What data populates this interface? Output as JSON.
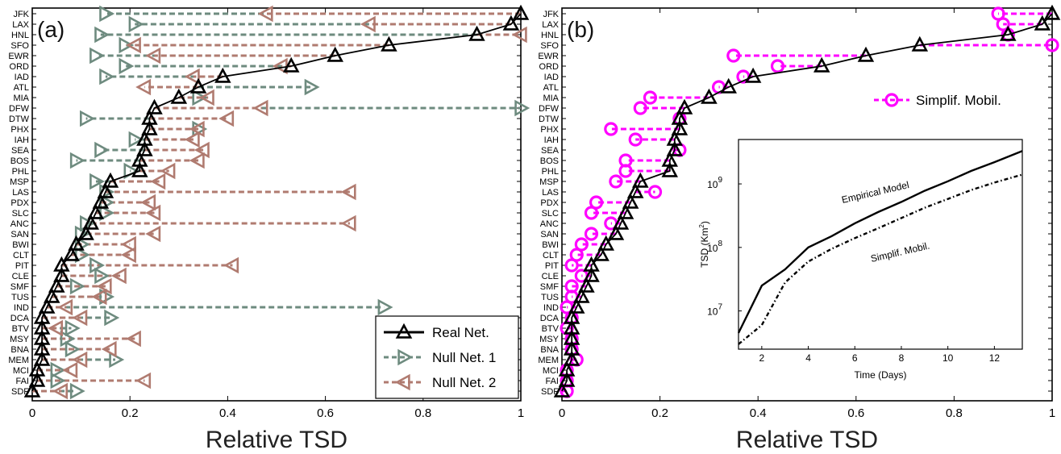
{
  "airports": [
    "JFK",
    "LAX",
    "HNL",
    "SFO",
    "EWR",
    "ORD",
    "IAD",
    "ATL",
    "MIA",
    "DFW",
    "DTW",
    "PHX",
    "IAH",
    "SEA",
    "BOS",
    "PHL",
    "MSP",
    "LAS",
    "PDX",
    "SLC",
    "ANC",
    "SAN",
    "BWI",
    "CLT",
    "PIT",
    "CLE",
    "SMF",
    "TUS",
    "IND",
    "DCA",
    "BTV",
    "MSY",
    "BNA",
    "MEM",
    "MCI",
    "FAI",
    "SDF"
  ],
  "colors": {
    "real": "#000000",
    "null1": "#6e8b7f",
    "null2": "#b07b70",
    "simplif": "#ff00ff"
  },
  "chart_data": [
    {
      "type": "line",
      "panel_label": "(a)",
      "xlabel": "Relative TSD",
      "ylabel": "",
      "xlim": [
        0,
        1
      ],
      "xticks": [
        "0",
        "0.2",
        "0.4",
        "0.6",
        "0.8",
        "1"
      ],
      "grid": false,
      "legend": "bottom-right",
      "series": [
        {
          "name": "Real Net.",
          "style": "solid",
          "marker": "triangle-up",
          "color": "#000000",
          "values": [
            1.0,
            0.98,
            0.91,
            0.73,
            0.62,
            0.53,
            0.39,
            0.34,
            0.3,
            0.25,
            0.24,
            0.24,
            0.23,
            0.23,
            0.22,
            0.22,
            0.16,
            0.15,
            0.14,
            0.13,
            0.12,
            0.11,
            0.09,
            0.08,
            0.06,
            0.06,
            0.05,
            0.04,
            0.03,
            0.02,
            0.02,
            0.02,
            0.02,
            0.02,
            0.01,
            0.01,
            0.0
          ]
        },
        {
          "name": "Null Net. 1",
          "style": "dashed",
          "marker": "triangle-right",
          "color": "#6e8b7f",
          "values": [
            0.15,
            0.21,
            0.14,
            0.19,
            0.13,
            0.19,
            0.15,
            0.57,
            0.34,
            1.0,
            0.11,
            0.34,
            0.21,
            0.14,
            0.09,
            0.2,
            0.13,
            0.15,
            0.15,
            0.15,
            0.11,
            0.1,
            0.1,
            0.1,
            0.13,
            0.14,
            0.09,
            0.15,
            0.72,
            0.16,
            0.08,
            0.07,
            0.08,
            0.17,
            0.05,
            0.05,
            0.09
          ]
        },
        {
          "name": "Null Net. 2",
          "style": "dashed",
          "marker": "triangle-left",
          "color": "#b07b70",
          "values": [
            0.48,
            0.69,
            1.0,
            0.21,
            0.25,
            0.51,
            0.33,
            0.23,
            0.36,
            0.47,
            0.4,
            0.34,
            0.33,
            0.35,
            0.34,
            0.28,
            0.26,
            0.65,
            0.24,
            0.25,
            0.65,
            0.25,
            0.2,
            0.2,
            0.41,
            0.18,
            0.15,
            0.14,
            0.07,
            0.1,
            0.05,
            0.21,
            0.16,
            0.1,
            0.08,
            0.23,
            0.06
          ]
        }
      ]
    },
    {
      "type": "line",
      "panel_label": "(b)",
      "xlabel": "Relative TSD",
      "ylabel": "",
      "xlim": [
        0,
        1
      ],
      "xticks": [
        "0",
        "0.2",
        "0.4",
        "0.6",
        "0.8",
        "1"
      ],
      "grid": false,
      "legend": "top-right",
      "series": [
        {
          "name": "",
          "style": "solid",
          "marker": "triangle-up",
          "color": "#000000",
          "values": [
            1.0,
            0.98,
            0.91,
            0.73,
            0.62,
            0.53,
            0.39,
            0.34,
            0.3,
            0.25,
            0.24,
            0.24,
            0.23,
            0.23,
            0.22,
            0.22,
            0.16,
            0.15,
            0.14,
            0.13,
            0.12,
            0.11,
            0.09,
            0.08,
            0.06,
            0.06,
            0.05,
            0.04,
            0.03,
            0.02,
            0.02,
            0.02,
            0.02,
            0.02,
            0.01,
            0.01,
            0.0
          ]
        },
        {
          "name": "Simplif. Mobil.",
          "style": "dashed",
          "marker": "circle",
          "color": "#ff00ff",
          "values": [
            0.89,
            0.9,
            0.91,
            1.0,
            0.35,
            0.44,
            0.37,
            0.32,
            0.18,
            0.16,
            0.24,
            0.1,
            0.15,
            0.24,
            0.13,
            0.13,
            0.11,
            0.19,
            0.07,
            0.06,
            0.1,
            0.06,
            0.04,
            0.03,
            0.02,
            0.04,
            0.02,
            0.02,
            0.01,
            0.02,
            0.01,
            0.02,
            0.02,
            0.03,
            0.01,
            0.01,
            0.01
          ]
        }
      ],
      "inset": {
        "type": "line",
        "xlabel": "Time (Days)",
        "ylabel": "TSD (Km²)",
        "ylabel_prefix": "TSD (Km",
        "ylabel_sup": "2",
        "ylabel_suffix": ")",
        "xlim": [
          1,
          13.2
        ],
        "yscale": "log",
        "ylim": [
          2500000,
          5000000000
        ],
        "xticks": [
          "2",
          "4",
          "6",
          "8",
          "10",
          "12"
        ],
        "yticks": [
          {
            "value": 10000000,
            "base": "10",
            "exp": "7"
          },
          {
            "value": 100000000,
            "base": "10",
            "exp": "8"
          },
          {
            "value": 1000000000,
            "base": "10",
            "exp": "9"
          }
        ],
        "series": [
          {
            "name": "Empirical Model",
            "style": "solid",
            "x": [
              1,
              2,
              3,
              4,
              5,
              6,
              7,
              8,
              9,
              10,
              11,
              12,
              13.2
            ],
            "y": [
              4500000,
              25000000,
              45000000,
              100000000,
              150000000,
              240000000,
              360000000,
              520000000,
              780000000,
              1100000000,
              1600000000,
              2200000000,
              3300000000
            ]
          },
          {
            "name": "Simplif. Mobil.",
            "style": "dotted",
            "x": [
              1,
              2,
              3,
              4,
              5,
              6,
              7,
              8,
              9,
              10,
              11,
              12,
              13.2
            ],
            "y": [
              3000000,
              6000000,
              28000000,
              60000000,
              95000000,
              140000000,
              200000000,
              290000000,
              420000000,
              580000000,
              800000000,
              1050000000,
              1400000000
            ]
          }
        ]
      }
    }
  ]
}
